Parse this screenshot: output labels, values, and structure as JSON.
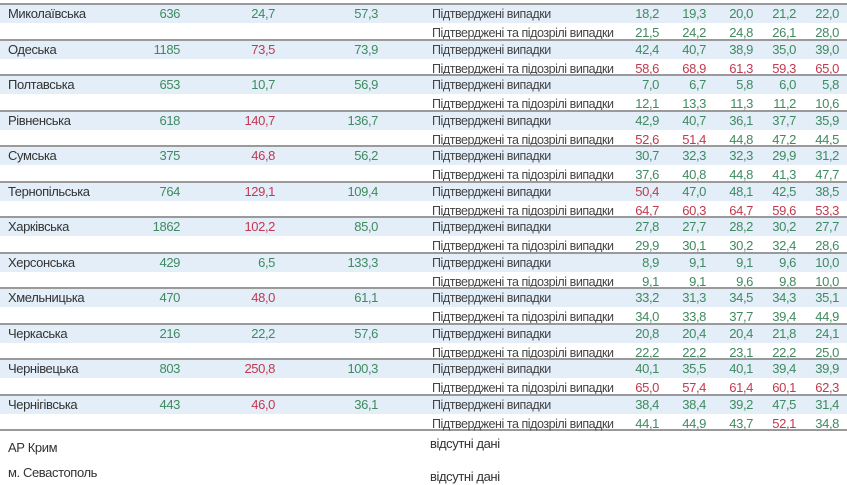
{
  "colors": {
    "green": "#3f8a5f",
    "red": "#c2394f",
    "row_band": "#e3eef9",
    "separator": "#9a9a9a"
  },
  "row_labels": {
    "confirmed": "Підтверджені випадки",
    "confirmed_suspected": "Підтверджені та підозрілі випадки"
  },
  "regions": [
    {
      "name": "Миколаївська",
      "c1": {
        "v": "636",
        "s": "green"
      },
      "c2": {
        "v": "24,7",
        "s": "green"
      },
      "c3": {
        "v": "57,3",
        "s": "green"
      },
      "confirmed": [
        [
          "18,2",
          "green"
        ],
        [
          "19,3",
          "green"
        ],
        [
          "20,0",
          "green"
        ],
        [
          "21,2",
          "green"
        ],
        [
          "22,0",
          "green"
        ]
      ],
      "confirmed_suspected": [
        [
          "21,5",
          "green"
        ],
        [
          "24,2",
          "green"
        ],
        [
          "24,8",
          "green"
        ],
        [
          "26,1",
          "green"
        ],
        [
          "28,0",
          "green"
        ]
      ]
    },
    {
      "name": "Одеська",
      "c1": {
        "v": "1185",
        "s": "green"
      },
      "c2": {
        "v": "73,5",
        "s": "red"
      },
      "c3": {
        "v": "73,9",
        "s": "green"
      },
      "confirmed": [
        [
          "42,4",
          "green"
        ],
        [
          "40,7",
          "green"
        ],
        [
          "38,9",
          "green"
        ],
        [
          "35,0",
          "green"
        ],
        [
          "39,0",
          "green"
        ]
      ],
      "confirmed_suspected": [
        [
          "58,6",
          "red"
        ],
        [
          "68,9",
          "red"
        ],
        [
          "61,3",
          "red"
        ],
        [
          "59,3",
          "red"
        ],
        [
          "65,0",
          "red"
        ]
      ]
    },
    {
      "name": "Полтавська",
      "c1": {
        "v": "653",
        "s": "green"
      },
      "c2": {
        "v": "10,7",
        "s": "green"
      },
      "c3": {
        "v": "56,9",
        "s": "green"
      },
      "confirmed": [
        [
          "7,0",
          "green"
        ],
        [
          "6,7",
          "green"
        ],
        [
          "5,8",
          "green"
        ],
        [
          "6,0",
          "green"
        ],
        [
          "5,8",
          "green"
        ]
      ],
      "confirmed_suspected": [
        [
          "12,1",
          "green"
        ],
        [
          "13,3",
          "green"
        ],
        [
          "11,3",
          "green"
        ],
        [
          "11,2",
          "green"
        ],
        [
          "10,6",
          "green"
        ]
      ]
    },
    {
      "name": "Рівненська",
      "c1": {
        "v": "618",
        "s": "green"
      },
      "c2": {
        "v": "140,7",
        "s": "red"
      },
      "c3": {
        "v": "136,7",
        "s": "green"
      },
      "confirmed": [
        [
          "42,9",
          "green"
        ],
        [
          "40,7",
          "green"
        ],
        [
          "36,1",
          "green"
        ],
        [
          "37,7",
          "green"
        ],
        [
          "35,9",
          "green"
        ]
      ],
      "confirmed_suspected": [
        [
          "52,6",
          "red"
        ],
        [
          "51,4",
          "red"
        ],
        [
          "44,8",
          "green"
        ],
        [
          "47,2",
          "green"
        ],
        [
          "44,5",
          "green"
        ]
      ]
    },
    {
      "name": "Сумська",
      "c1": {
        "v": "375",
        "s": "green"
      },
      "c2": {
        "v": "46,8",
        "s": "red"
      },
      "c3": {
        "v": "56,2",
        "s": "green"
      },
      "confirmed": [
        [
          "30,7",
          "green"
        ],
        [
          "32,3",
          "green"
        ],
        [
          "32,3",
          "green"
        ],
        [
          "29,9",
          "green"
        ],
        [
          "31,2",
          "green"
        ]
      ],
      "confirmed_suspected": [
        [
          "37,6",
          "green"
        ],
        [
          "40,8",
          "green"
        ],
        [
          "44,8",
          "green"
        ],
        [
          "41,3",
          "green"
        ],
        [
          "47,7",
          "green"
        ]
      ]
    },
    {
      "name": "Тернопільська",
      "c1": {
        "v": "764",
        "s": "green"
      },
      "c2": {
        "v": "129,1",
        "s": "red"
      },
      "c3": {
        "v": "109,4",
        "s": "green"
      },
      "confirmed": [
        [
          "50,4",
          "red"
        ],
        [
          "47,0",
          "green"
        ],
        [
          "48,1",
          "green"
        ],
        [
          "42,5",
          "green"
        ],
        [
          "38,5",
          "green"
        ]
      ],
      "confirmed_suspected": [
        [
          "64,7",
          "red"
        ],
        [
          "60,3",
          "red"
        ],
        [
          "64,7",
          "red"
        ],
        [
          "59,6",
          "red"
        ],
        [
          "53,3",
          "red"
        ]
      ]
    },
    {
      "name": "Харківська",
      "c1": {
        "v": "1862",
        "s": "green"
      },
      "c2": {
        "v": "102,2",
        "s": "red"
      },
      "c3": {
        "v": "85,0",
        "s": "green"
      },
      "confirmed": [
        [
          "27,8",
          "green"
        ],
        [
          "27,7",
          "green"
        ],
        [
          "28,2",
          "green"
        ],
        [
          "30,2",
          "green"
        ],
        [
          "27,7",
          "green"
        ]
      ],
      "confirmed_suspected": [
        [
          "29,9",
          "green"
        ],
        [
          "30,1",
          "green"
        ],
        [
          "30,2",
          "green"
        ],
        [
          "32,4",
          "green"
        ],
        [
          "28,6",
          "green"
        ]
      ]
    },
    {
      "name": "Херсонська",
      "c1": {
        "v": "429",
        "s": "green"
      },
      "c2": {
        "v": "6,5",
        "s": "green"
      },
      "c3": {
        "v": "133,3",
        "s": "green"
      },
      "confirmed": [
        [
          "8,9",
          "green"
        ],
        [
          "9,1",
          "green"
        ],
        [
          "9,1",
          "green"
        ],
        [
          "9,6",
          "green"
        ],
        [
          "10,0",
          "green"
        ]
      ],
      "confirmed_suspected": [
        [
          "9,1",
          "green"
        ],
        [
          "9,1",
          "green"
        ],
        [
          "9,6",
          "green"
        ],
        [
          "9,8",
          "green"
        ],
        [
          "10,0",
          "green"
        ]
      ]
    },
    {
      "name": "Хмельницька",
      "c1": {
        "v": "470",
        "s": "green"
      },
      "c2": {
        "v": "48,0",
        "s": "red"
      },
      "c3": {
        "v": "61,1",
        "s": "green"
      },
      "confirmed": [
        [
          "33,2",
          "green"
        ],
        [
          "31,3",
          "green"
        ],
        [
          "34,5",
          "green"
        ],
        [
          "34,3",
          "green"
        ],
        [
          "35,1",
          "green"
        ]
      ],
      "confirmed_suspected": [
        [
          "34,0",
          "green"
        ],
        [
          "33,8",
          "green"
        ],
        [
          "37,7",
          "green"
        ],
        [
          "39,4",
          "green"
        ],
        [
          "44,9",
          "green"
        ]
      ]
    },
    {
      "name": "Черкаська",
      "c1": {
        "v": "216",
        "s": "green"
      },
      "c2": {
        "v": "22,2",
        "s": "green"
      },
      "c3": {
        "v": "57,6",
        "s": "green"
      },
      "confirmed": [
        [
          "20,8",
          "green"
        ],
        [
          "20,4",
          "green"
        ],
        [
          "20,4",
          "green"
        ],
        [
          "21,8",
          "green"
        ],
        [
          "24,1",
          "green"
        ]
      ],
      "confirmed_suspected": [
        [
          "22,2",
          "green"
        ],
        [
          "22,2",
          "green"
        ],
        [
          "23,1",
          "green"
        ],
        [
          "22,2",
          "green"
        ],
        [
          "25,0",
          "green"
        ]
      ]
    },
    {
      "name": "Чернівецька",
      "c1": {
        "v": "803",
        "s": "green"
      },
      "c2": {
        "v": "250,8",
        "s": "red"
      },
      "c3": {
        "v": "100,3",
        "s": "green"
      },
      "confirmed": [
        [
          "40,1",
          "green"
        ],
        [
          "35,5",
          "green"
        ],
        [
          "40,1",
          "green"
        ],
        [
          "39,4",
          "green"
        ],
        [
          "39,9",
          "green"
        ]
      ],
      "confirmed_suspected": [
        [
          "65,0",
          "red"
        ],
        [
          "57,4",
          "red"
        ],
        [
          "61,4",
          "red"
        ],
        [
          "60,1",
          "red"
        ],
        [
          "62,3",
          "red"
        ]
      ]
    },
    {
      "name": "Чернігівська",
      "c1": {
        "v": "443",
        "s": "green"
      },
      "c2": {
        "v": "46,0",
        "s": "red"
      },
      "c3": {
        "v": "36,1",
        "s": "green"
      },
      "confirmed": [
        [
          "38,4",
          "green"
        ],
        [
          "38,4",
          "green"
        ],
        [
          "39,2",
          "green"
        ],
        [
          "47,5",
          "green"
        ],
        [
          "31,4",
          "green"
        ]
      ],
      "confirmed_suspected": [
        [
          "44,1",
          "green"
        ],
        [
          "44,9",
          "green"
        ],
        [
          "43,7",
          "green"
        ],
        [
          "52,1",
          "red"
        ],
        [
          "34,8",
          "green"
        ]
      ]
    }
  ],
  "footer": [
    {
      "name": "АР Крим",
      "note": "відсутні дані"
    },
    {
      "name": "м. Севастополь",
      "note": "відсутні дані"
    }
  ]
}
